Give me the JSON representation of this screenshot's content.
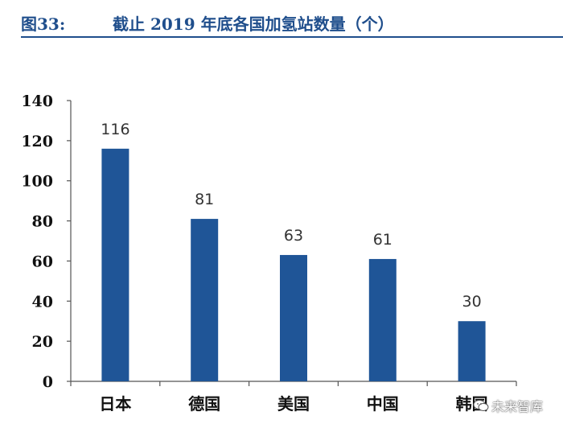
{
  "header": {
    "figure_label": "图33:",
    "title": "截止 2019 年底各国加氢站数量（个）"
  },
  "watermark": {
    "text": "未来智库",
    "icon": "wechat-icon"
  },
  "colors": {
    "bar": "#1f5597",
    "header": "#1f4e8c",
    "axis": "#555555"
  },
  "chart_data": {
    "type": "bar",
    "title": "截止 2019 年底各国加氢站数量（个）",
    "categories": [
      "日本",
      "德国",
      "美国",
      "中国",
      "韩国"
    ],
    "values": [
      116,
      81,
      63,
      61,
      30
    ],
    "xlabel": "",
    "ylabel": "",
    "ylim": [
      0,
      140
    ],
    "yticks": [
      0,
      20,
      40,
      60,
      80,
      100,
      120,
      140
    ],
    "grid": false,
    "data_labels": true
  }
}
